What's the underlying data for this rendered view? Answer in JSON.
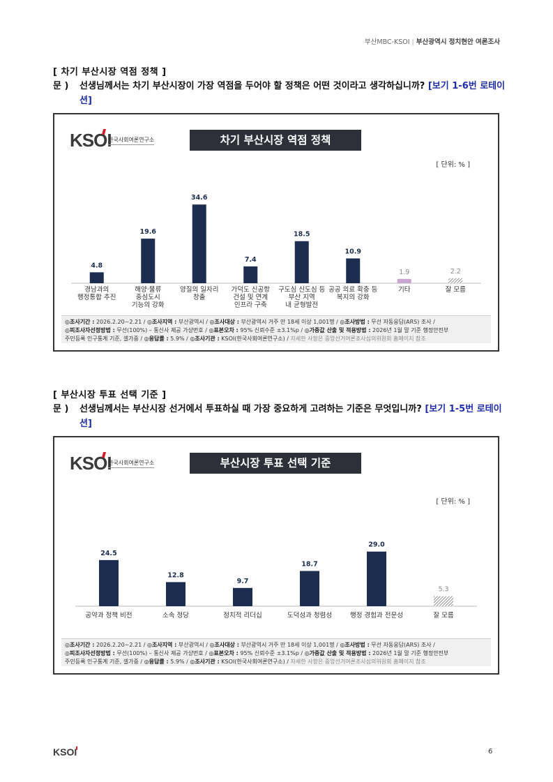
{
  "header": {
    "left": "부산MBC-KSOI",
    "sep": "|",
    "right": "부산광역시 정치현안 여론조사"
  },
  "sections": [
    {
      "title": "[ 차기 부산시장 역점 정책 ]",
      "q_prefix": "문 )",
      "question": "선생님께서는 차기 부산시장이 가장 역점을 두어야 할 정책은 어떤 것이라고 생각하십니까?",
      "rotation": "[보기 1-6번 로테이션]",
      "chart": {
        "logo_text": "KSOI",
        "logo_org": "한국사회여론연구소",
        "title": "차기 부산시장 역점 정책",
        "unit": "[ 단위: % ]",
        "note": {
          "l1_k1": "◎조사기간 :",
          "l1_v1": " 2026.2.20~2.21 / ",
          "l1_k2": "◎조사지역 :",
          "l1_v2": " 부산광역시 / ",
          "l1_k3": "◎조사대상 :",
          "l1_v3": " 부산광역시 거주 만 18세 이상 1,001명 / ",
          "l1_k4": "◎조사방법 :",
          "l1_v4": " 무선 자동응답(ARS) 조사 /",
          "l2_k1": "◎피조사자선정방법 :",
          "l2_v1": " 무선(100%) – 통신사 제공 가상번호 / ",
          "l2_k2": "◎표본오차 :",
          "l2_v2": " 95% 신뢰수준 ±3.1%p / ",
          "l2_k3": "◎가중값 산출 및 적용방법 :",
          "l2_v3": " 2026년 1월 말 기준 행정안전부",
          "l3_v1": "주민등록 인구통계 기준, 셀가중 / ",
          "l3_k2": "◎응답률 :",
          "l3_v2": " 5.9% / ",
          "l3_k3": "◎조사기관 :",
          "l3_v3": " KSOI(한국사회여론연구소) / ",
          "l3_muted": "자세한 사항은 중앙선거여론조사심의위원회 홈페이지 참조"
        }
      }
    },
    {
      "title": "[ 부산시장 투표 선택 기준 ]",
      "q_prefix": "문 )",
      "question": "선생님께서는 부산시장 선거에서 투표하실 때 가장 중요하게 고려하는 기준은 무엇입니까?",
      "rotation": "[보기 1-5번 로테이션]",
      "chart": {
        "logo_text": "KSOI",
        "logo_org": "한국사회여론연구소",
        "title": "부산시장 투표 선택 기준",
        "unit": "[ 단위: % ]",
        "note": {
          "l1_k1": "◎조사기간 :",
          "l1_v1": " 2026.2.20~2.21 / ",
          "l1_k2": "◎조사지역 :",
          "l1_v2": " 부산광역시 / ",
          "l1_k3": "◎조사대상 :",
          "l1_v3": " 부산광역시 거주 만 18세 이상 1,001명 / ",
          "l1_k4": "◎조사방법 :",
          "l1_v4": " 무선 자동응답(ARS) 조사 /",
          "l2_k1": "◎피조사자선정방법 :",
          "l2_v1": " 무선(100%) – 통신사 제공 가상번호 / ",
          "l2_k2": "◎표본오차 :",
          "l2_v2": " 95% 신뢰수준 ±3.1%p / ",
          "l2_k3": "◎가중값 산출 및 적용방법 :",
          "l2_v3": " 2026년 1월 말 기준 행정안전부",
          "l3_v1": "주민등록 인구통계 기준, 셀가중 / ",
          "l3_k2": "◎응답률 :",
          "l3_v2": " 5.9% / ",
          "l3_k3": "◎조사기관 :",
          "l3_v3": " KSOI(한국사회여론연구소) / ",
          "l3_muted": "자세한 사항은 중앙선거여론조사심의위원회 홈페이지 참조"
        }
      }
    }
  ],
  "chart_data": [
    {
      "type": "bar",
      "title": "차기 부산시장 역점 정책",
      "unit": "[ 단위: % ]",
      "categories": [
        [
          "경남과의",
          "행정통합 추진"
        ],
        [
          "해양·물류",
          "중심도시",
          "기능의 강화"
        ],
        [
          "양질의 일자리",
          "창출"
        ],
        [
          "가덕도 신공항",
          "건설 및 연계",
          "인프라 구축"
        ],
        [
          "구도심 신도심 등",
          "부산 지역",
          "내 균형발전"
        ],
        [
          "공공 의료 확충 등",
          "복지의 강화"
        ],
        [
          "기타"
        ],
        [
          "잘 모름"
        ]
      ],
      "values": [
        4.8,
        19.6,
        34.6,
        7.4,
        18.5,
        10.9,
        1.9,
        2.2
      ],
      "value_labels": [
        "4.8",
        "19.6",
        "34.6",
        "7.4",
        "18.5",
        "10.9",
        "1.9",
        "2.2"
      ],
      "styles": [
        "navy",
        "navy",
        "navy",
        "navy",
        "navy",
        "navy",
        "pink",
        "hatch"
      ],
      "colors": {
        "navy": "#1d2d4f",
        "pink": "#c8a6cf",
        "hatch": "#777777"
      },
      "ylim": [
        0,
        40
      ]
    },
    {
      "type": "bar",
      "title": "부산시장 투표 선택 기준",
      "unit": "[ 단위: % ]",
      "categories": [
        [
          "공약과 정책 비전"
        ],
        [
          "소속 정당"
        ],
        [
          "정치적 리더십"
        ],
        [
          "도덕성과 청렴성"
        ],
        [
          "행정 경험과 전문성"
        ],
        [
          "잘 모름"
        ]
      ],
      "values": [
        24.5,
        12.8,
        9.7,
        18.7,
        29.0,
        5.3
      ],
      "value_labels": [
        "24.5",
        "12.8",
        "9.7",
        "18.7",
        "29.0",
        "5.3"
      ],
      "styles": [
        "navy",
        "navy",
        "navy",
        "navy",
        "navy",
        "hatch"
      ],
      "colors": {
        "navy": "#1d2d4f",
        "hatch": "#777777"
      },
      "ylim": [
        0,
        40
      ]
    }
  ],
  "footer": {
    "logo": "KSOI",
    "page": "6"
  }
}
